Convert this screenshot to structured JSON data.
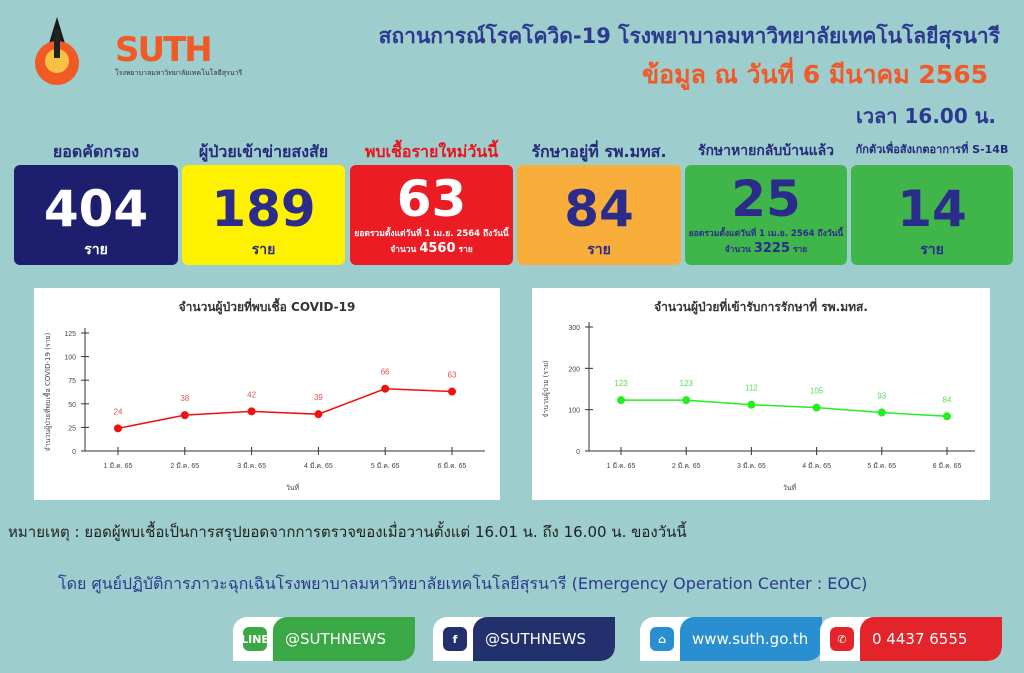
{
  "header": {
    "logo_university_text": "มหาวิทยาลัยเทคโนโลยีสุรนารี",
    "logo_suth": "SUTH",
    "logo_suth_sub": "โรงพยาบาลมหาวิทยาลัยเทคโนโลยีสุรนารี",
    "title": "สถานการณ์โรคโควิด-19 โรงพยาบาลมหาวิทยาลัยเทคโนโลยีสุรนารี",
    "date": "ข้อมูล ณ วันที่ 6 มีนาคม 2565",
    "time": "เวลา 16.00 น."
  },
  "stats": [
    {
      "label": "ยอดคัดกรอง",
      "value": "404",
      "unit": "ราย",
      "bg": "#1e1e6e",
      "fg": "#ffffff"
    },
    {
      "label": "ผู้ป่วยเข้าข่ายสงสัย",
      "value": "189",
      "unit": "ราย",
      "bg": "#fff200",
      "fg": "#2b2b8c"
    },
    {
      "label": "พบเชื้อรายใหม่วันนี้",
      "value": "63",
      "sub": "ยอดรวมตั้งแต่วันที่ 1 เม.ย. 2564 ถึงวันนี้",
      "total_prefix": "จำนวน",
      "total": "4560",
      "total_unit": "ราย",
      "bg": "#ec1c24",
      "fg": "#ffffff"
    },
    {
      "label": "รักษาอยู่ที่ รพ.มทส.",
      "value": "84",
      "unit": "ราย",
      "bg": "#f9ae3b",
      "fg": "#2b2b8c"
    },
    {
      "label": "รักษาหายกลับบ้านแล้ว",
      "value": "25",
      "sub": "ยอดรวมตั้งแต่วันที่ 1 เม.ย. 2564 ถึงวันนี้",
      "total_prefix": "จำนวน",
      "total": "3225",
      "total_unit": "ราย",
      "bg": "#3fb54a",
      "fg": "#2b2b8c"
    },
    {
      "label": "กักตัวเพื่อสังเกตอาการที่ S-14B",
      "value": "14",
      "unit": "ราย",
      "bg": "#3fb54a",
      "fg": "#2b2b8c"
    }
  ],
  "chart_data": [
    {
      "type": "line",
      "title": "จำนวนผู้ป่วยที่พบเชื้อ COVID-19",
      "xlabel": "วันที่",
      "ylabel": "จำนวนผู้ป่วยที่พบเชื้อ COVID-19 (ราย)",
      "categories": [
        "1 มี.ค. 65",
        "2 มี.ค. 65",
        "3 มี.ค. 65",
        "4 มี.ค. 65",
        "5 มี.ค. 65",
        "6 มี.ค. 65"
      ],
      "values": [
        24,
        38,
        42,
        39,
        66,
        63
      ],
      "ylim": [
        0,
        125
      ],
      "yticks": [
        0,
        25,
        50,
        75,
        100,
        125
      ],
      "color": "#ee1111",
      "label_color": "#e05555",
      "grid": false
    },
    {
      "type": "line",
      "title": "จำนวนผู้ป่วยที่เข้ารับการรักษาที่ รพ.มทส.",
      "xlabel": "วันที่",
      "ylabel": "จำนวนผู้ป่วย (ราย)",
      "categories": [
        "1 มี.ค. 65",
        "2 มี.ค. 65",
        "3 มี.ค. 65",
        "4 มี.ค. 65",
        "5 มี.ค. 65",
        "6 มี.ค. 65"
      ],
      "values": [
        123,
        123,
        112,
        105,
        93,
        84
      ],
      "ylim": [
        0,
        300
      ],
      "yticks": [
        0,
        100,
        200,
        300
      ],
      "color": "#22ee22",
      "label_color": "#55dd55",
      "grid": false
    }
  ],
  "footer": {
    "note": "หมายเหตุ :  ยอดผู้พบเชื้อเป็นการสรุปยอดจากการตรวจของเมื่อวานตั้งแต่ 16.01 น. ถึง 16.00 น. ของวันนี้",
    "by": "โดย ศูนย์ปฏิบัติการภาวะฉุกเฉินโรงพยาบาลมหาวิทยาลัยเทคโนโลยีสุรนารี (Emergency Operation  Center : EOC)",
    "social": [
      {
        "icon": "line-icon",
        "icon_text": "LINE",
        "text": "@SUTHNEWS",
        "color": "#3aa845"
      },
      {
        "icon": "facebook-icon",
        "icon_text": "f",
        "text": "@SUTHNEWS",
        "color": "#23306e"
      },
      {
        "icon": "home-icon",
        "icon_text": "⌂",
        "text": "www.suth.go.th",
        "color": "#2a8fd0"
      },
      {
        "icon": "phone-icon",
        "icon_text": "✆",
        "text": "0 4437 6555",
        "color": "#e3242b"
      }
    ]
  }
}
